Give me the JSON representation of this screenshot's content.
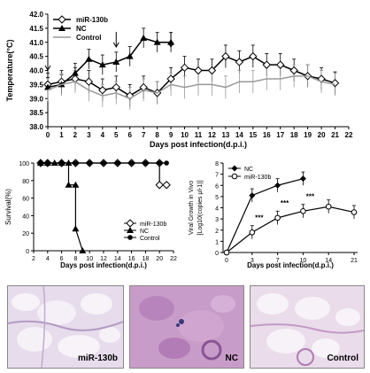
{
  "chart_data": [
    {
      "type": "line",
      "ylabel": "Temperature(°C)",
      "xlabel": "Days post infection(d.p.i.)",
      "ylim": [
        38.0,
        42.0
      ],
      "xlim": [
        0,
        22
      ],
      "y_ticks": [
        "38.0",
        "38.5",
        "39.0",
        "39.5",
        "40.0",
        "40.5",
        "41.0",
        "41.5",
        "42.0"
      ],
      "x_ticks": [
        "0",
        "1",
        "2",
        "3",
        "4",
        "5",
        "6",
        "7",
        "8",
        "9",
        "10",
        "11",
        "12",
        "13",
        "14",
        "15",
        "16",
        "17",
        "18",
        "19",
        "20",
        "21",
        "22"
      ],
      "legend_position": "top-left",
      "arrows_at_days": [
        0,
        5,
        9
      ],
      "series": [
        {
          "name": "miR-130b",
          "color": "#000000",
          "marker": "open-diamond",
          "x": [
            0,
            1,
            2,
            3,
            4,
            5,
            6,
            7,
            8,
            9,
            10,
            11,
            12,
            13,
            14,
            15,
            16,
            17,
            18,
            19,
            20,
            21
          ],
          "y": [
            39.5,
            39.6,
            39.7,
            39.6,
            39.3,
            39.4,
            39.1,
            39.4,
            39.2,
            39.7,
            40.1,
            40.0,
            40.0,
            40.5,
            40.3,
            40.5,
            40.2,
            40.2,
            40.0,
            39.8,
            39.7,
            39.55
          ]
        },
        {
          "name": "NC",
          "color": "#000000",
          "marker": "filled-triangle",
          "x": [
            0,
            1,
            2,
            3,
            4,
            5,
            6,
            7,
            8,
            9
          ],
          "y": [
            39.4,
            39.5,
            39.9,
            40.4,
            40.2,
            40.3,
            40.5,
            41.15,
            41.0,
            41.0
          ]
        },
        {
          "name": "Control",
          "color": "#999999",
          "marker": "none",
          "x": [
            0,
            1,
            2,
            3,
            4,
            5,
            6,
            7,
            8,
            9,
            10,
            11,
            12,
            13,
            14,
            15,
            16,
            17,
            18,
            19,
            20,
            21
          ],
          "y": [
            39.3,
            39.5,
            39.6,
            39.3,
            39.1,
            39.2,
            39.0,
            39.3,
            39.2,
            39.5,
            39.4,
            39.5,
            39.5,
            39.4,
            39.6,
            39.6,
            39.7,
            39.7,
            39.8,
            39.8,
            39.6,
            39.5
          ]
        }
      ]
    },
    {
      "type": "line",
      "ylabel": "Survival(%)",
      "xlabel": "Days post infection(d.p.i.)",
      "ylim": [
        0,
        100
      ],
      "xlim": [
        2,
        22
      ],
      "y_ticks": [
        "0",
        "20",
        "40",
        "60",
        "80",
        "100"
      ],
      "x_ticks": [
        "2",
        "4",
        "6",
        "8",
        "10",
        "12",
        "14",
        "16",
        "18",
        "20",
        "22"
      ],
      "legend_position": "bottom-right",
      "series": [
        {
          "name": "miR-130b",
          "marker": "open-diamond",
          "x": [
            3,
            4,
            6,
            8,
            10,
            12,
            14,
            16,
            18,
            20,
            20,
            21
          ],
          "y": [
            100,
            100,
            100,
            100,
            100,
            100,
            100,
            100,
            100,
            100,
            75,
            75
          ]
        },
        {
          "name": "NC",
          "marker": "filled-triangle",
          "x": [
            3,
            4,
            5,
            6,
            7,
            7,
            8,
            8,
            9
          ],
          "y": [
            100,
            100,
            100,
            100,
            100,
            75,
            75,
            25,
            0
          ]
        },
        {
          "name": "Control",
          "marker": "filled-circle",
          "x": [
            3,
            4,
            6,
            8,
            10,
            12,
            14,
            16,
            18,
            20,
            21
          ],
          "y": [
            100,
            100,
            100,
            100,
            100,
            100,
            100,
            100,
            100,
            100,
            100
          ]
        }
      ]
    },
    {
      "type": "line",
      "ylabel": "Viral Growth in Vivo [Log10(copies μl-1)]",
      "xlabel": "Days post infection(d.p.i.)",
      "ylim": [
        0,
        8
      ],
      "y_ticks": [
        "0",
        "1",
        "2",
        "3",
        "4",
        "5",
        "6",
        "7",
        "8"
      ],
      "categories": [
        "0",
        "3",
        "7",
        "10",
        "14",
        "21"
      ],
      "legend_position": "top-left",
      "annotations": [
        {
          "day": "3",
          "text": "***"
        },
        {
          "day": "7",
          "text": "***"
        },
        {
          "day": "10",
          "text": "***"
        }
      ],
      "series": [
        {
          "name": "NC",
          "marker": "filled-diamond",
          "values": [
            0,
            5.1,
            6.0,
            6.6,
            null,
            null
          ]
        },
        {
          "name": "miR-130b",
          "marker": "open-circle",
          "values": [
            0,
            1.8,
            3.1,
            3.7,
            4.1,
            3.6
          ]
        }
      ]
    }
  ],
  "micrographs": [
    {
      "label": "miR-130b"
    },
    {
      "label": "NC"
    },
    {
      "label": "Control"
    }
  ]
}
